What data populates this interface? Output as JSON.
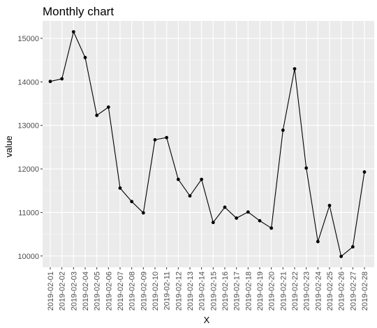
{
  "chart_data": {
    "type": "line",
    "title": "Monthly chart",
    "xlabel": "X",
    "ylabel": "value",
    "x": [
      "2019-02-01",
      "2019-02-02",
      "2019-02-03",
      "2019-02-04",
      "2019-02-05",
      "2019-02-06",
      "2019-02-07",
      "2019-02-08",
      "2019-02-09",
      "2019-02-10",
      "2019-02-11",
      "2019-02-12",
      "2019-02-13",
      "2019-02-14",
      "2019-02-15",
      "2019-02-16",
      "2019-02-17",
      "2019-02-18",
      "2019-02-19",
      "2019-02-20",
      "2019-02-21",
      "2019-02-22",
      "2019-02-23",
      "2019-02-24",
      "2019-02-25",
      "2019-02-26",
      "2019-02-27",
      "2019-02-28"
    ],
    "series": [
      {
        "values": [
          14010,
          14070,
          15150,
          14560,
          13230,
          13420,
          11560,
          11250,
          10990,
          12670,
          12720,
          11760,
          11380,
          11760,
          10770,
          11120,
          10870,
          11010,
          10810,
          10640,
          12890,
          14300,
          12020,
          10330,
          11160,
          9990,
          10210,
          11930
        ]
      }
    ],
    "yticks": [
      10000,
      11000,
      12000,
      13000,
      14000,
      15000
    ],
    "ylim": [
      9740,
      15400
    ],
    "grid": true,
    "legend": "none",
    "colors": {
      "panel_background": "#ebebeb",
      "grid_major": "#ffffff",
      "grid_minor": "#f4f4f4",
      "line": "#000000",
      "point": "#000000",
      "tick_text": "#4d4d4d",
      "tick_mark": "#333333"
    }
  }
}
